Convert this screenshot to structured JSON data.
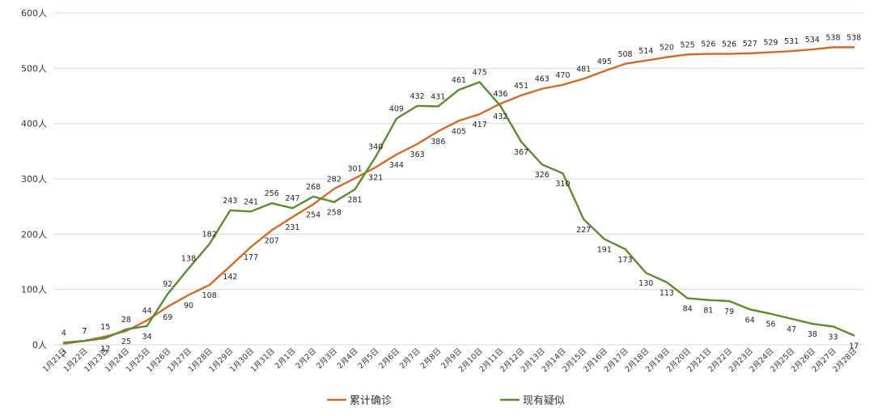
{
  "chart_data": {
    "type": "line",
    "title": "",
    "xlabel": "",
    "ylabel": "",
    "ylim": [
      0,
      600
    ],
    "yticks": [
      0,
      100,
      200,
      300,
      400,
      500,
      600
    ],
    "y_tick_labels": [
      "0人",
      "100人",
      "200人",
      "300人",
      "400人",
      "500人",
      "600人"
    ],
    "grid": true,
    "legend_position": "bottom",
    "categories": [
      "1月21日",
      "1月22日",
      "1月23日",
      "1月24日",
      "1月25日",
      "1月26日",
      "1月27日",
      "1月28日",
      "1月29日",
      "1月30日",
      "1月31日",
      "2月1日",
      "2月2日",
      "2月3日",
      "2月4日",
      "2月5日",
      "2月6日",
      "2月7日",
      "2月8日",
      "2月9日",
      "2月10日",
      "2月11日",
      "2月12日",
      "2月13日",
      "2月14日",
      "2月15日",
      "2月16日",
      "2月17日",
      "2月18日",
      "2月19日",
      "2月20日",
      "2月21日",
      "2月22日",
      "2月23日",
      "2月24日",
      "2月25日",
      "2月26日",
      "2月27日",
      "2月28日"
    ],
    "series": [
      {
        "name": "累计确诊",
        "color": "#D06A2A",
        "values": [
          2,
          7,
          15,
          25,
          44,
          69,
          90,
          108,
          142,
          177,
          207,
          231,
          254,
          282,
          301,
          321,
          344,
          363,
          386,
          405,
          417,
          436,
          451,
          463,
          470,
          481,
          495,
          508,
          514,
          520,
          525,
          526,
          526,
          527,
          529,
          531,
          534,
          538,
          538
        ]
      },
      {
        "name": "现有疑似",
        "color": "#5C8A33",
        "values": [
          4,
          7,
          12,
          28,
          34,
          92,
          138,
          182,
          243,
          241,
          256,
          247,
          268,
          258,
          281,
          340,
          409,
          432,
          431,
          461,
          475,
          432,
          367,
          326,
          310,
          227,
          191,
          173,
          130,
          113,
          84,
          81,
          79,
          64,
          56,
          47,
          38,
          33,
          17
        ]
      }
    ]
  }
}
